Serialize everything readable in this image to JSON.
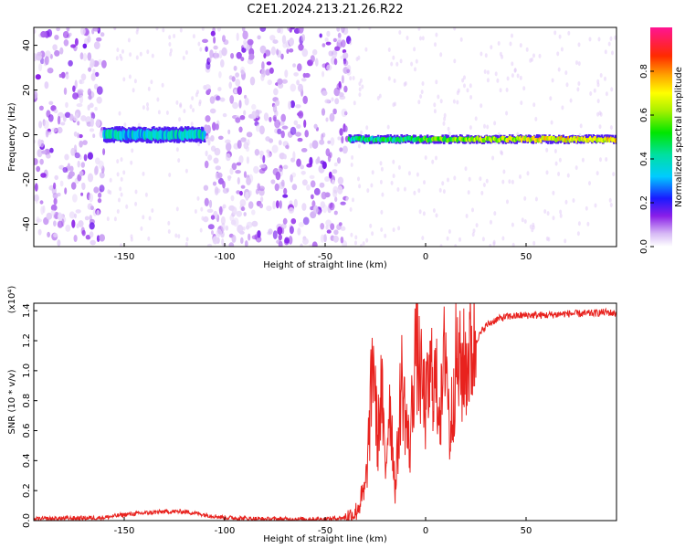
{
  "title": "C2E1.2024.213.21.26.R22",
  "chart_data": [
    {
      "type": "heatmap",
      "xlabel": "Height of straight line (km)",
      "ylabel": "Frequency (Hz)",
      "xlim": [
        -195,
        95
      ],
      "ylim": [
        -50,
        48
      ],
      "xticks": [
        -150,
        -100,
        -50,
        0,
        50
      ],
      "yticks": [
        -40,
        -20,
        0,
        20,
        40
      ],
      "colorbar": {
        "label": "Normalized spectral amplitude",
        "range": [
          0,
          1
        ],
        "ticks": [
          0.0,
          0.2,
          0.4,
          0.6,
          0.8
        ]
      },
      "regions": [
        {
          "x_range": [
            -195,
            -160
          ],
          "description_value": "noise"
        },
        {
          "x_range": [
            -160,
            -110
          ],
          "signal_center_hz": 0
        },
        {
          "x_range": [
            -110,
            -38
          ],
          "description_value": "noise"
        },
        {
          "x_range": [
            -38,
            95
          ],
          "signal_center_hz": -2
        }
      ]
    },
    {
      "type": "line",
      "xlabel": "Height of straight line (km)",
      "ylabel": "SNR (10 * v/v)",
      "y_scale_note": "(x10⁴)",
      "xlim": [
        -195,
        95
      ],
      "ylim": [
        0,
        1.45
      ],
      "xticks": [
        -150,
        -100,
        -50,
        0,
        50
      ],
      "yticks": [
        0.0,
        0.2,
        0.4,
        0.6,
        0.8,
        1.0,
        1.2,
        1.4
      ],
      "series": [
        {
          "color": "#e8221e",
          "points": [
            [
              -195,
              0.01
            ],
            [
              -160,
              0.02
            ],
            [
              -150,
              0.04
            ],
            [
              -140,
              0.05
            ],
            [
              -130,
              0.06
            ],
            [
              -120,
              0.06
            ],
            [
              -110,
              0.04
            ],
            [
              -100,
              0.02
            ],
            [
              -80,
              0.01
            ],
            [
              -50,
              0.01
            ],
            [
              -40,
              0.02
            ],
            [
              -35,
              0.05
            ],
            [
              -30,
              0.2
            ],
            [
              -28,
              0.6
            ],
            [
              -26,
              1.15
            ],
            [
              -24,
              0.5
            ],
            [
              -22,
              0.9
            ],
            [
              -20,
              0.3
            ],
            [
              -18,
              0.85
            ],
            [
              -15,
              0.2
            ],
            [
              -12,
              0.95
            ],
            [
              -10,
              0.7
            ],
            [
              -8,
              0.45
            ],
            [
              -5,
              1.2
            ],
            [
              -2,
              0.9
            ],
            [
              0,
              0.75
            ],
            [
              3,
              1.0
            ],
            [
              5,
              0.9
            ],
            [
              8,
              0.75
            ],
            [
              10,
              1.25
            ],
            [
              12,
              0.55
            ],
            [
              15,
              1.05
            ],
            [
              18,
              1.0
            ],
            [
              20,
              1.05
            ],
            [
              25,
              1.2
            ],
            [
              30,
              1.3
            ],
            [
              35,
              1.34
            ],
            [
              40,
              1.36
            ],
            [
              50,
              1.37
            ],
            [
              60,
              1.37
            ],
            [
              70,
              1.38
            ],
            [
              80,
              1.38
            ],
            [
              90,
              1.39
            ],
            [
              95,
              1.38
            ]
          ]
        }
      ]
    }
  ]
}
